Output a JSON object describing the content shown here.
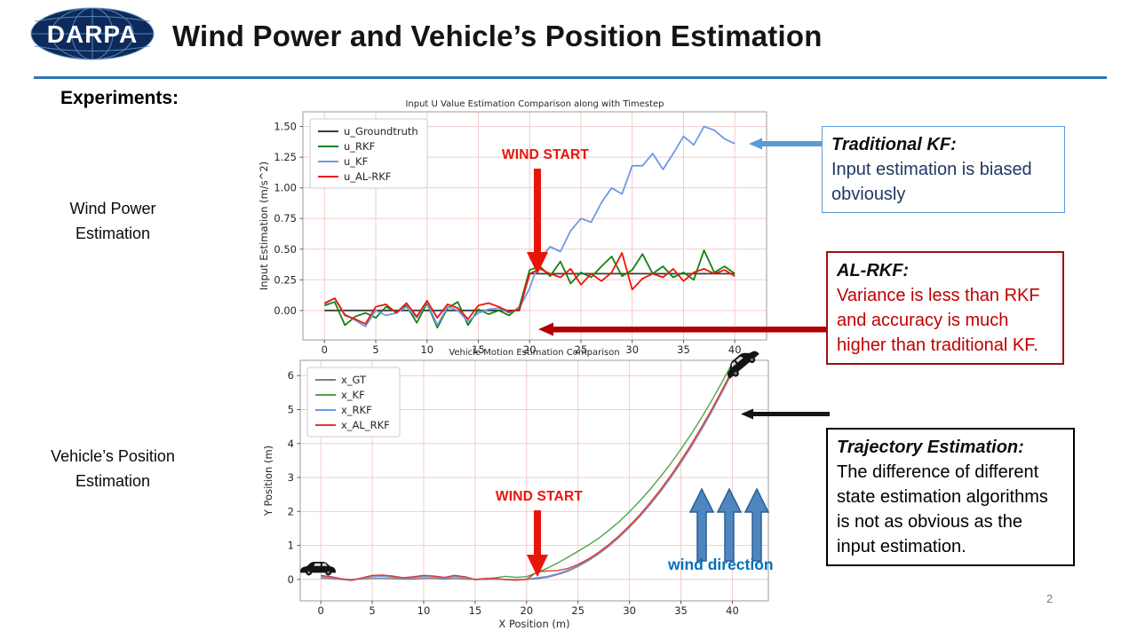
{
  "slide": {
    "title": "Wind Power and Vehicle’s Position Estimation",
    "logo_text": "DARPA",
    "experiments_label": "Experiments:",
    "page_number": "2"
  },
  "row_labels": {
    "wind_power": "Wind Power Estimation",
    "vehicle_position": "Vehicle’s Position Estimation"
  },
  "annotations": {
    "wind_start_top": "WIND START",
    "wind_start_bottom": "WIND START",
    "wind_direction_label": "wind direction"
  },
  "callouts": {
    "traditional_kf": {
      "title": "Traditional KF:",
      "body": "Input estimation is biased obviously",
      "border_color": "#5B9BD5",
      "text_color": "#1F3864"
    },
    "al_rkf": {
      "title": "AL-RKF:",
      "body": "Variance is less than RKF and accuracy is much higher than traditional KF.",
      "border_color": "#991111",
      "text_color": "#C00000"
    },
    "trajectory": {
      "title": "Trajectory Estimation:",
      "body": "The difference of different state estimation algorithms is not as obvious as the input estimation.",
      "border_color": "#000000",
      "text_color": "#000000"
    }
  },
  "colors": {
    "header_rule": "#2E74B5",
    "wind_start": "#E8150A",
    "wind_direction_text": "#0070C0",
    "arrow_blue": "#5B9BD5",
    "arrow_dark_red": "#B00000",
    "arrow_black": "#141414",
    "wind_arrow_fill": "#4F86C0",
    "wind_arrow_stroke": "#2F5E92"
  },
  "chart_data": [
    {
      "type": "line",
      "title": "Input U Value Estimation Comparison along with Timestep",
      "xlabel": "",
      "ylabel": "Input Estimation (m/s^2)",
      "xlim": [
        -2.1,
        43.1
      ],
      "ylim": [
        -0.24,
        1.62
      ],
      "xticks": [
        0,
        5,
        10,
        15,
        20,
        25,
        30,
        35,
        40
      ],
      "yticks": [
        0,
        0.25,
        0.5,
        0.75,
        1,
        1.25,
        1.5
      ],
      "ytick_decimals": 2,
      "grid": true,
      "grid_color": "#f5caca",
      "legend_position": "upper left",
      "x": [
        0,
        1,
        2,
        3,
        4,
        5,
        6,
        7,
        8,
        9,
        10,
        11,
        12,
        13,
        14,
        15,
        16,
        17,
        18,
        19,
        20,
        21,
        22,
        23,
        24,
        25,
        26,
        27,
        28,
        29,
        30,
        31,
        32,
        33,
        34,
        35,
        36,
        37,
        38,
        39,
        40
      ],
      "series": [
        {
          "name": "u_Groundtruth",
          "color": "#3b3b3b",
          "values": [
            0,
            0,
            0,
            0,
            0,
            0,
            0,
            0,
            0,
            0,
            0,
            0,
            0,
            0,
            0,
            0,
            0,
            0,
            0,
            0,
            0.3,
            0.3,
            0.3,
            0.3,
            0.3,
            0.3,
            0.3,
            0.3,
            0.3,
            0.3,
            0.3,
            0.3,
            0.3,
            0.3,
            0.3,
            0.3,
            0.3,
            0.3,
            0.3,
            0.3,
            0.3
          ]
        },
        {
          "name": "u_RKF",
          "color": "#128212",
          "values": [
            0.04,
            0.07,
            -0.12,
            -0.05,
            -0.02,
            -0.06,
            0.03,
            -0.01,
            0.04,
            -0.1,
            0.06,
            -0.14,
            0.02,
            0.07,
            -0.12,
            0.01,
            -0.03,
            0.0,
            -0.04,
            0.03,
            0.33,
            0.36,
            0.28,
            0.4,
            0.22,
            0.31,
            0.27,
            0.36,
            0.44,
            0.28,
            0.33,
            0.46,
            0.3,
            0.36,
            0.27,
            0.31,
            0.25,
            0.49,
            0.31,
            0.36,
            0.3
          ]
        },
        {
          "name": "u_KF",
          "color": "#6d99e8",
          "values": [
            0.05,
            0.1,
            -0.03,
            -0.08,
            -0.13,
            0.0,
            -0.04,
            -0.02,
            0.03,
            -0.06,
            0.07,
            -0.12,
            0.03,
            0.0,
            -0.09,
            -0.02,
            0.01,
            0.02,
            -0.02,
            0.02,
            0.18,
            0.42,
            0.52,
            0.48,
            0.65,
            0.75,
            0.72,
            0.88,
            1.0,
            0.95,
            1.18,
            1.18,
            1.28,
            1.15,
            1.28,
            1.42,
            1.35,
            1.5,
            1.47,
            1.4,
            1.36
          ]
        },
        {
          "name": "u_AL-RKF",
          "color": "#ee1509",
          "values": [
            0.06,
            0.1,
            -0.04,
            -0.07,
            -0.11,
            0.03,
            0.05,
            -0.02,
            0.06,
            -0.05,
            0.08,
            -0.06,
            0.05,
            0.02,
            -0.07,
            0.04,
            0.06,
            0.03,
            -0.01,
            0.01,
            0.3,
            0.34,
            0.3,
            0.27,
            0.34,
            0.21,
            0.3,
            0.24,
            0.31,
            0.47,
            0.17,
            0.26,
            0.3,
            0.27,
            0.34,
            0.24,
            0.31,
            0.34,
            0.3,
            0.33,
            0.28
          ]
        }
      ]
    },
    {
      "type": "line",
      "title": "Vehicle Motion Estimation Comparison",
      "xlabel": "X Position (m)",
      "ylabel": "Y Position (m)",
      "xlim": [
        -2,
        43.5
      ],
      "ylim": [
        -0.63,
        6.45
      ],
      "xticks": [
        0,
        5,
        10,
        15,
        20,
        25,
        30,
        35,
        40
      ],
      "yticks": [
        0,
        1,
        2,
        3,
        4,
        5,
        6
      ],
      "ytick_decimals": 0,
      "grid": true,
      "grid_color": "#f5caca",
      "legend_position": "upper left",
      "x": [
        0,
        1,
        2,
        3,
        4,
        5,
        6,
        7,
        8,
        9,
        10,
        11,
        12,
        13,
        14,
        15,
        16,
        17,
        18,
        19,
        20,
        21,
        22,
        23,
        24,
        25,
        26,
        27,
        28,
        29,
        30,
        31,
        32,
        33,
        34,
        35,
        36,
        37,
        38,
        39,
        40
      ],
      "series": [
        {
          "name": "x_GT",
          "color": "#808080",
          "values": [
            0.04,
            0.02,
            0.0,
            0.0,
            0.01,
            0.03,
            0.03,
            0.02,
            0.01,
            0.01,
            0.03,
            0.03,
            0.01,
            0.03,
            0.01,
            0.0,
            0.0,
            0.01,
            0.0,
            0.0,
            0.0,
            0.02,
            0.06,
            0.14,
            0.24,
            0.38,
            0.55,
            0.75,
            0.98,
            1.24,
            1.53,
            1.85,
            2.2,
            2.58,
            2.99,
            3.43,
            3.9,
            4.41,
            4.94,
            5.51,
            6.1
          ]
        },
        {
          "name": "x_KF",
          "color": "#4ea44e",
          "values": [
            0.1,
            0.06,
            0.01,
            -0.02,
            0.04,
            0.1,
            0.11,
            0.07,
            0.03,
            0.06,
            0.1,
            0.09,
            0.05,
            0.1,
            0.06,
            0.0,
            0.02,
            0.05,
            0.09,
            0.06,
            0.08,
            0.2,
            0.33,
            0.48,
            0.65,
            0.83,
            1.01,
            1.21,
            1.45,
            1.7,
            1.99,
            2.31,
            2.65,
            3.02,
            3.41,
            3.83,
            4.28,
            4.76,
            5.27,
            5.81,
            6.38
          ]
        },
        {
          "name": "x_RKF",
          "color": "#6d99e8",
          "values": [
            0.08,
            0.05,
            0.0,
            -0.03,
            0.03,
            0.08,
            0.09,
            0.06,
            0.02,
            0.05,
            0.08,
            0.07,
            0.04,
            0.08,
            0.05,
            -0.01,
            0.01,
            0.02,
            -0.01,
            -0.02,
            0.01,
            0.05,
            0.09,
            0.17,
            0.27,
            0.41,
            0.58,
            0.78,
            1.01,
            1.27,
            1.56,
            1.88,
            2.23,
            2.61,
            3.02,
            3.46,
            3.93,
            4.44,
            4.97,
            5.54,
            6.13
          ]
        },
        {
          "name": "x_AL_RKF",
          "color": "#e8352b",
          "values": [
            0.12,
            0.08,
            0.02,
            -0.02,
            0.05,
            0.12,
            0.13,
            0.1,
            0.05,
            0.08,
            0.12,
            0.1,
            0.06,
            0.12,
            0.08,
            0.0,
            0.03,
            0.02,
            0.0,
            -0.02,
            0.0,
            0.22,
            0.25,
            0.26,
            0.32,
            0.44,
            0.6,
            0.8,
            1.03,
            1.29,
            1.58,
            1.9,
            2.26,
            2.64,
            3.05,
            3.5,
            3.97,
            4.48,
            5.01,
            5.58,
            6.17
          ]
        }
      ]
    }
  ]
}
